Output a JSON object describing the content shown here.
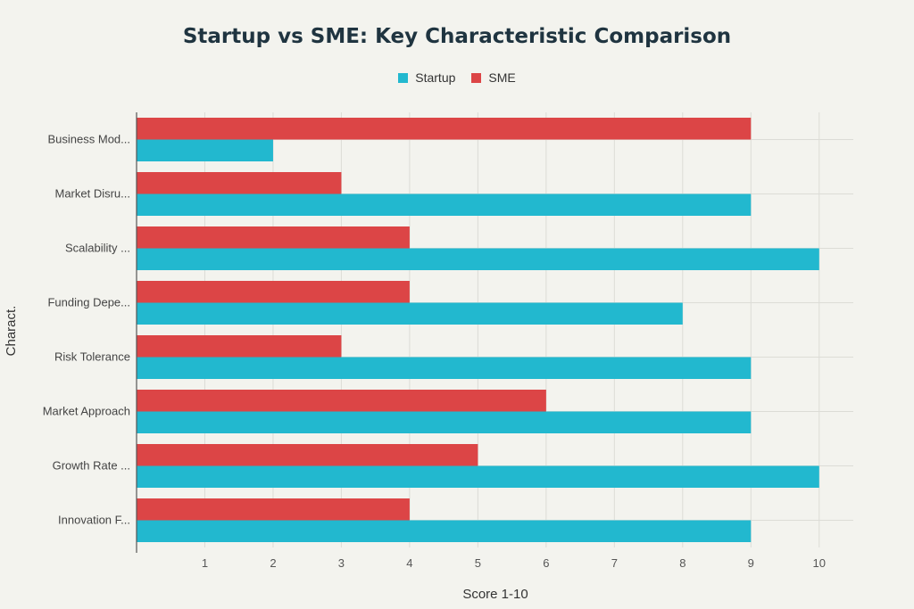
{
  "chart_data": {
    "type": "bar",
    "orientation": "horizontal",
    "title": "Startup vs SME: Key Characteristic Comparison",
    "xlabel": "Score 1-10",
    "ylabel": "Charact.",
    "categories": [
      "Business Mod...",
      "Market Disru...",
      "Scalability ...",
      "Funding Depe...",
      "Risk Tolerance",
      "Market Approach",
      "Growth Rate ...",
      "Innovation F..."
    ],
    "series": [
      {
        "name": "Startup",
        "color": "#22b8cf",
        "values": [
          2,
          9,
          10,
          8,
          9,
          9,
          10,
          9
        ]
      },
      {
        "name": "SME",
        "color": "#dc4546",
        "values": [
          9,
          3,
          4,
          4,
          3,
          6,
          5,
          4
        ]
      }
    ],
    "xlim": [
      0,
      10.5
    ],
    "xticks": [
      1,
      2,
      3,
      4,
      5,
      6,
      7,
      8,
      9,
      10
    ],
    "grid": true,
    "legend_position": "top-center"
  }
}
